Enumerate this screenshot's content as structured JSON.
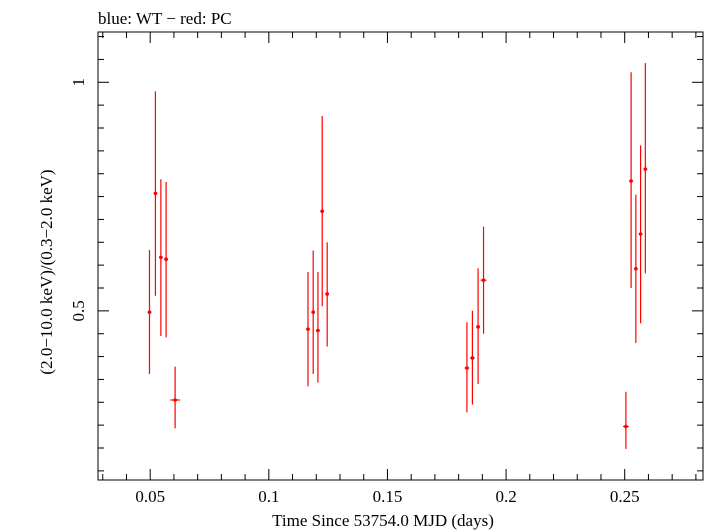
{
  "chart_data": {
    "type": "scatter",
    "title": "blue: WT − red: PC",
    "xlabel": "Time Since 53754.0 MJD (days)",
    "ylabel": "(2.0−10.0 keV)/(0.3−2.0 keV)",
    "xlim": [
      0.028,
      0.283
    ],
    "ylim": [
      0.13,
      1.11
    ],
    "x_ticks": [
      "0.05",
      "0.1",
      "0.15",
      "0.2",
      "0.25"
    ],
    "y_ticks": [
      "0.5",
      "1"
    ],
    "grid": false,
    "series": [
      {
        "color": "#ff0000",
        "points": [
          {
            "x": 0.0497,
            "y": 0.497,
            "xerr": 0.0008,
            "ylo": 0.362,
            "yhi": 0.633
          },
          {
            "x": 0.0522,
            "y": 0.757,
            "xerr": 0.0008,
            "ylo": 0.533,
            "yhi": 0.98
          },
          {
            "x": 0.0545,
            "y": 0.617,
            "xerr": 0.0008,
            "ylo": 0.445,
            "yhi": 0.788
          },
          {
            "x": 0.0567,
            "y": 0.613,
            "xerr": 0.0008,
            "ylo": 0.442,
            "yhi": 0.782
          },
          {
            "x": 0.0605,
            "y": 0.305,
            "xerr": 0.002,
            "ylo": 0.243,
            "yhi": 0.378
          },
          {
            "x": 0.1165,
            "y": 0.46,
            "xerr": 0.0008,
            "ylo": 0.335,
            "yhi": 0.585
          },
          {
            "x": 0.1187,
            "y": 0.497,
            "xerr": 0.0008,
            "ylo": 0.362,
            "yhi": 0.632
          },
          {
            "x": 0.1207,
            "y": 0.457,
            "xerr": 0.0008,
            "ylo": 0.343,
            "yhi": 0.585
          },
          {
            "x": 0.1225,
            "y": 0.718,
            "xerr": 0.0008,
            "ylo": 0.51,
            "yhi": 0.926
          },
          {
            "x": 0.1246,
            "y": 0.537,
            "xerr": 0.0008,
            "ylo": 0.422,
            "yhi": 0.65
          },
          {
            "x": 0.1835,
            "y": 0.375,
            "xerr": 0.001,
            "ylo": 0.278,
            "yhi": 0.475
          },
          {
            "x": 0.1858,
            "y": 0.397,
            "xerr": 0.001,
            "ylo": 0.295,
            "yhi": 0.5
          },
          {
            "x": 0.1882,
            "y": 0.465,
            "xerr": 0.0008,
            "ylo": 0.34,
            "yhi": 0.593
          },
          {
            "x": 0.1905,
            "y": 0.567,
            "xerr": 0.0012,
            "ylo": 0.45,
            "yhi": 0.684
          },
          {
            "x": 0.2505,
            "y": 0.247,
            "xerr": 0.0012,
            "ylo": 0.198,
            "yhi": 0.323
          },
          {
            "x": 0.2527,
            "y": 0.784,
            "xerr": 0.0008,
            "ylo": 0.55,
            "yhi": 1.022
          },
          {
            "x": 0.2547,
            "y": 0.592,
            "xerr": 0.0008,
            "ylo": 0.43,
            "yhi": 0.754
          },
          {
            "x": 0.2567,
            "y": 0.668,
            "xerr": 0.0008,
            "ylo": 0.473,
            "yhi": 0.862
          },
          {
            "x": 0.2587,
            "y": 0.81,
            "xerr": 0.0008,
            "ylo": 0.582,
            "yhi": 1.042
          }
        ]
      }
    ]
  }
}
